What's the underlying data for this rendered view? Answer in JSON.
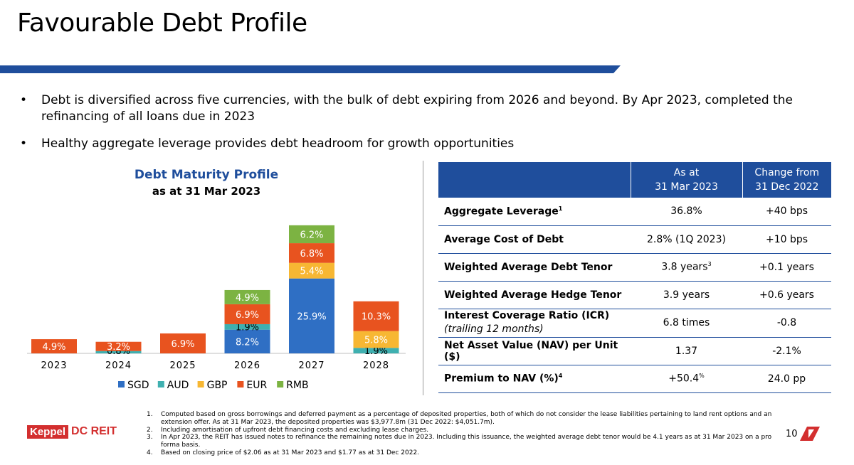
{
  "slide": {
    "title": "Favourable Debt Profile",
    "page_number": "10"
  },
  "bullets": [
    "Debt is diversified across five currencies, with the bulk of debt expiring from 2026 and beyond. By Apr 2023, completed the refinancing of all loans due in 2023",
    "Healthy aggregate leverage provides debt headroom for growth opportunities"
  ],
  "bullet_symbol": "•",
  "chart_data": {
    "type": "bar",
    "stacked": true,
    "title": "Debt Maturity Profile",
    "subtitle": "as at 31 Mar 2023",
    "categories": [
      "2023",
      "2024",
      "2025",
      "2026",
      "2027",
      "2028"
    ],
    "series": [
      {
        "name": "SGD",
        "color": "#2f6fc4",
        "values": [
          0,
          0,
          0,
          8.2,
          25.9,
          0
        ]
      },
      {
        "name": "AUD",
        "color": "#3fb0b0",
        "values": [
          0,
          0.8,
          0,
          1.9,
          0,
          1.9
        ]
      },
      {
        "name": "GBP",
        "color": "#f7b733",
        "values": [
          0,
          0,
          0,
          0,
          5.4,
          5.8
        ]
      },
      {
        "name": "EUR",
        "color": "#e8531f",
        "values": [
          4.9,
          3.2,
          6.9,
          6.9,
          6.8,
          10.3
        ]
      },
      {
        "name": "RMB",
        "color": "#7cb342",
        "values": [
          0,
          0,
          0,
          4.9,
          6.2,
          0
        ]
      }
    ],
    "labels": [
      [
        "",
        "",
        "",
        "8.2%",
        "25.9%",
        ""
      ],
      [
        "",
        "0.8%",
        "",
        "1.9%",
        "",
        "1.9%"
      ],
      [
        "",
        "",
        "",
        "",
        "5.4%",
        "5.8%"
      ],
      [
        "4.9%",
        "3.2%",
        "6.9%",
        "6.9%",
        "6.8%",
        "10.3%"
      ],
      [
        "",
        "",
        "",
        "4.9%",
        "6.2%",
        ""
      ]
    ],
    "ylim": [
      0,
      45
    ],
    "grid": false,
    "legend": "bottom"
  },
  "table": {
    "header": [
      [
        "As at",
        "31 Mar 2023"
      ],
      [
        "Change from",
        "31 Dec 2022"
      ]
    ],
    "rows": [
      {
        "metric": "Aggregate Leverage",
        "sup": "1",
        "note": "",
        "value": "36.8%",
        "value_sup": "",
        "change": "+40 bps"
      },
      {
        "metric": "Average Cost of Debt",
        "sup": "",
        "note": "",
        "value": "2.8% (1Q 2023)",
        "value_sup": "",
        "change": "+10 bps"
      },
      {
        "metric": "Weighted Average Debt Tenor",
        "sup": "",
        "note": "",
        "value": "3.8 years",
        "value_sup": "3",
        "change": "+0.1 years"
      },
      {
        "metric": "Weighted Average Hedge Tenor",
        "sup": "",
        "note": "",
        "value": "3.9 years",
        "value_sup": "",
        "change": "+0.6 years"
      },
      {
        "metric": "Interest Coverage Ratio (ICR)",
        "sup": "",
        "note": "(trailing 12 months)",
        "value": "6.8 times",
        "value_sup": "",
        "change": "-0.8"
      },
      {
        "metric": "Net Asset Value (NAV) per Unit ($)",
        "sup": "",
        "note": "",
        "value": "1.37",
        "value_sup": "",
        "change": "-2.1%"
      },
      {
        "metric": "Premium to NAV (%)",
        "sup": "4",
        "note": "",
        "value": "+50.4",
        "value_sup": "%",
        "change": "24.0 pp"
      }
    ]
  },
  "footnotes": [
    {
      "n": "1.",
      "text": "Computed based on gross borrowings and deferred payment as a percentage of deposited properties, both of which do not consider the lease liabilities pertaining to land rent options and an extension offer. As at 31 Mar 2023, the deposited properties was $3,977.8m (31 Dec 2022: $4,051.7m)."
    },
    {
      "n": "2.",
      "text": "Including amortisation of upfront debt financing costs and excluding lease charges."
    },
    {
      "n": "3.",
      "text": "In Apr 2023, the REIT has issued notes to refinance the remaining notes due in 2023. Including this issuance, the weighted average debt tenor would be 4.1 years as at 31 Mar 2023 on a pro forma basis."
    },
    {
      "n": "4.",
      "text": "Based on closing price of $2.06 as at 31 Mar 2023 and $1.77 as at 31 Dec 2022."
    }
  ],
  "logo": {
    "keppel": "Keppel",
    "dcreit": "DC REIT"
  },
  "colors": {
    "brand_blue": "#1f4e9c",
    "brand_red": "#d32f2f"
  }
}
